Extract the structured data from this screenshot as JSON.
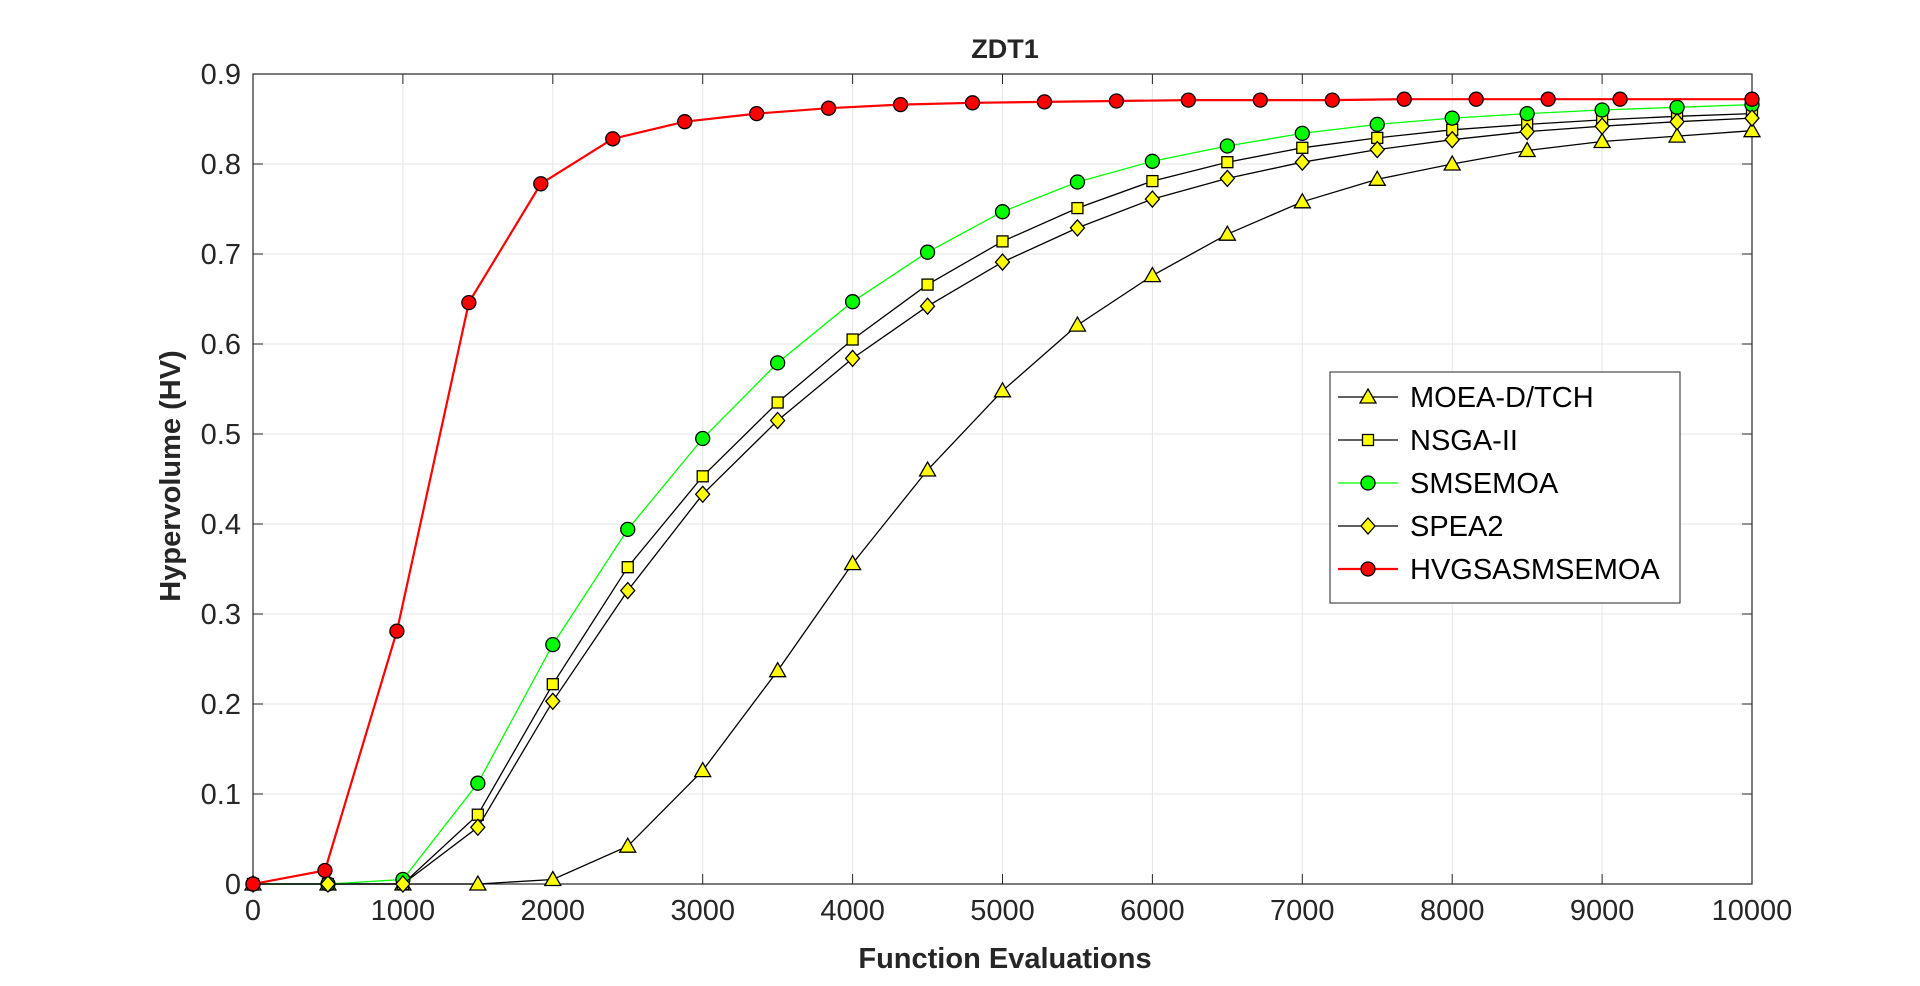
{
  "chart_data": {
    "type": "line",
    "title": "ZDT1",
    "xlabel": "Function Evaluations",
    "ylabel": "Hypervolume (HV)",
    "xlim": [
      0,
      10000
    ],
    "ylim": [
      0,
      0.9
    ],
    "xticks": [
      "0",
      "1000",
      "2000",
      "3000",
      "4000",
      "5000",
      "6000",
      "7000",
      "8000",
      "9000",
      "10000"
    ],
    "yticks": [
      "0",
      "0.1",
      "0.2",
      "0.3",
      "0.4",
      "0.5",
      "0.6",
      "0.7",
      "0.8",
      "0.9"
    ],
    "grid": true,
    "legend_position": "right",
    "series": [
      {
        "name": "MOEA-D/TCH",
        "line_color": "#000000",
        "marker": "triangle",
        "marker_fill": "#ffff00",
        "x": [
          0,
          500,
          1000,
          1500,
          2000,
          2500,
          3000,
          3500,
          4000,
          4500,
          5000,
          5500,
          6000,
          6500,
          7000,
          7500,
          8000,
          8500,
          9000,
          9500,
          10000
        ],
        "y": [
          0,
          0,
          0,
          0,
          0.005,
          0.042,
          0.126,
          0.237,
          0.356,
          0.46,
          0.548,
          0.621,
          0.676,
          0.722,
          0.758,
          0.783,
          0.8,
          0.815,
          0.825,
          0.831,
          0.837
        ]
      },
      {
        "name": "NSGA-II",
        "line_color": "#000000",
        "marker": "square",
        "marker_fill": "#ffff00",
        "x": [
          0,
          500,
          1000,
          1500,
          2000,
          2500,
          3000,
          3500,
          4000,
          4500,
          5000,
          5500,
          6000,
          6500,
          7000,
          7500,
          8000,
          8500,
          9000,
          9500,
          10000
        ],
        "y": [
          0,
          0,
          0,
          0.077,
          0.222,
          0.352,
          0.453,
          0.535,
          0.605,
          0.666,
          0.714,
          0.751,
          0.781,
          0.802,
          0.818,
          0.829,
          0.838,
          0.844,
          0.849,
          0.853,
          0.856
        ]
      },
      {
        "name": "SMSEMOA",
        "line_color": "#00ff00",
        "marker": "circle",
        "marker_fill": "#00ff00",
        "x": [
          0,
          500,
          1000,
          1500,
          2000,
          2500,
          3000,
          3500,
          4000,
          4500,
          5000,
          5500,
          6000,
          6500,
          7000,
          7500,
          8000,
          8500,
          9000,
          9500,
          10000
        ],
        "y": [
          0,
          0,
          0.005,
          0.112,
          0.266,
          0.394,
          0.495,
          0.579,
          0.647,
          0.702,
          0.747,
          0.78,
          0.803,
          0.82,
          0.834,
          0.844,
          0.851,
          0.856,
          0.86,
          0.863,
          0.866
        ]
      },
      {
        "name": "SPEA2",
        "line_color": "#000000",
        "marker": "diamond",
        "marker_fill": "#ffff00",
        "x": [
          0,
          500,
          1000,
          1500,
          2000,
          2500,
          3000,
          3500,
          4000,
          4500,
          5000,
          5500,
          6000,
          6500,
          7000,
          7500,
          8000,
          8500,
          9000,
          9500,
          10000
        ],
        "y": [
          0,
          0,
          0,
          0.063,
          0.203,
          0.326,
          0.433,
          0.515,
          0.584,
          0.642,
          0.691,
          0.729,
          0.761,
          0.784,
          0.802,
          0.816,
          0.827,
          0.836,
          0.842,
          0.847,
          0.851
        ]
      },
      {
        "name": "HVGSASMSEMOA",
        "line_color": "#ff0000",
        "marker": "circle",
        "marker_fill": "#ff0000",
        "x": [
          0,
          480,
          960,
          1440,
          1920,
          2400,
          2880,
          3360,
          3840,
          4320,
          4800,
          5280,
          5760,
          6240,
          6720,
          7200,
          7680,
          8160,
          8640,
          9120,
          10000
        ],
        "y": [
          0,
          0.015,
          0.281,
          0.646,
          0.778,
          0.828,
          0.847,
          0.856,
          0.862,
          0.866,
          0.868,
          0.869,
          0.87,
          0.871,
          0.871,
          0.871,
          0.872,
          0.872,
          0.872,
          0.872,
          0.872
        ]
      }
    ]
  }
}
